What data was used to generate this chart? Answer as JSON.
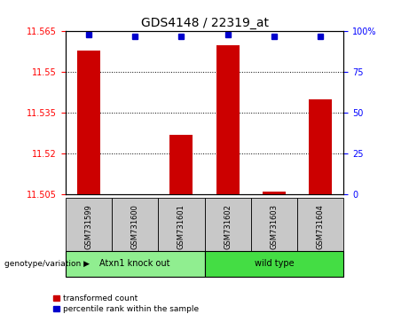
{
  "title": "GDS4148 / 22319_at",
  "samples": [
    "GSM731599",
    "GSM731600",
    "GSM731601",
    "GSM731602",
    "GSM731603",
    "GSM731604"
  ],
  "red_values": [
    11.558,
    11.505,
    11.527,
    11.56,
    11.506,
    11.54
  ],
  "blue_values": [
    98,
    97,
    97,
    98,
    97,
    97
  ],
  "ymin": 11.505,
  "ymax": 11.565,
  "yticks": [
    11.505,
    11.52,
    11.535,
    11.55,
    11.565
  ],
  "y2ticks": [
    0,
    25,
    50,
    75,
    100
  ],
  "groups": [
    {
      "label": "Atxn1 knock out",
      "indices": [
        0,
        1,
        2
      ],
      "color": "#90EE90"
    },
    {
      "label": "wild type",
      "indices": [
        3,
        4,
        5
      ],
      "color": "#44DD44"
    }
  ],
  "bar_color": "#CC0000",
  "dot_color": "#0000CC",
  "group_bg_color": "#C8C8C8",
  "plot_bg_color": "#FFFFFF",
  "title_fontsize": 10,
  "tick_fontsize": 7,
  "sample_fontsize": 6,
  "group_fontsize": 7,
  "legend_labels": [
    "transformed count",
    "percentile rank within the sample"
  ],
  "genotype_label": "genotype/variation"
}
